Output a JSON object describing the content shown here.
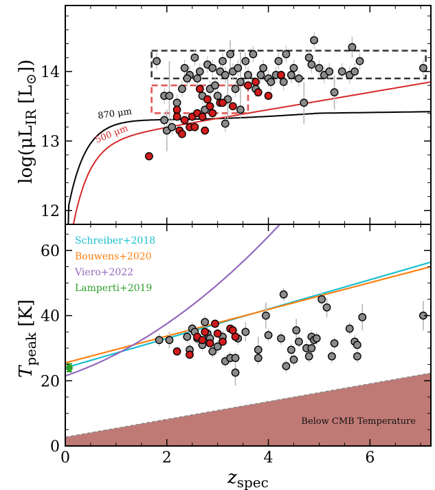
{
  "chart_data": [
    {
      "type": "scatter",
      "panel": "top",
      "xlim": [
        0,
        7.2
      ],
      "ylim": [
        11.8,
        14.95
      ],
      "ylabel": "log(μL",
      "ylabel_sub": "IR",
      "ylabel_unit": " [L",
      "ylabel_unit_sub": "⊙",
      "ylabel_close": "])",
      "y_ticks": [
        "12",
        "13",
        "14"
      ],
      "y_tick_values": [
        12,
        13,
        14
      ],
      "curves": [
        {
          "name": "870 μm",
          "color": "#000000",
          "label_color": "#000000",
          "type": "870"
        },
        {
          "name": "500 μm",
          "color": "#d62728",
          "label_color": "#d62728",
          "type": "500"
        }
      ],
      "boxes": [
        {
          "color": "#333333",
          "x": [
            1.7,
            7.1
          ],
          "y": [
            13.9,
            14.3
          ]
        },
        {
          "color": "#e05555",
          "x": [
            1.7,
            3.6
          ],
          "y": [
            13.4,
            13.8
          ]
        }
      ],
      "gray_points": [
        [
          1.8,
          14.15
        ],
        [
          1.95,
          13.65
        ],
        [
          2.05,
          13.65
        ],
        [
          2.3,
          13.75
        ],
        [
          2.35,
          14.05
        ],
        [
          2.45,
          13.95
        ],
        [
          2.55,
          14.2
        ],
        [
          2.6,
          13.9
        ],
        [
          2.65,
          14.0
        ],
        [
          2.7,
          13.65
        ],
        [
          2.75,
          13.45
        ],
        [
          2.8,
          14.1
        ],
        [
          2.85,
          13.75
        ],
        [
          2.9,
          14.05
        ],
        [
          2.95,
          13.8
        ],
        [
          3.0,
          13.65
        ],
        [
          3.05,
          14.0
        ],
        [
          3.1,
          14.15
        ],
        [
          3.15,
          13.95
        ],
        [
          3.2,
          13.6
        ],
        [
          3.25,
          14.25
        ],
        [
          3.3,
          14.0
        ],
        [
          3.35,
          13.75
        ],
        [
          3.4,
          14.05
        ],
        [
          3.45,
          13.85
        ],
        [
          3.55,
          14.15
        ],
        [
          3.6,
          13.95
        ],
        [
          3.7,
          14.25
        ],
        [
          3.75,
          13.75
        ],
        [
          3.85,
          13.95
        ],
        [
          3.9,
          14.05
        ],
        [
          4.0,
          13.9
        ],
        [
          4.05,
          13.85
        ],
        [
          4.15,
          13.95
        ],
        [
          4.2,
          14.15
        ],
        [
          4.3,
          13.85
        ],
        [
          4.35,
          14.25
        ],
        [
          4.45,
          13.95
        ],
        [
          4.5,
          14.05
        ],
        [
          4.6,
          13.9
        ],
        [
          4.7,
          13.55
        ],
        [
          4.8,
          14.2
        ],
        [
          4.85,
          14.1
        ],
        [
          4.9,
          14.45
        ],
        [
          5.0,
          14.05
        ],
        [
          5.1,
          13.95
        ],
        [
          5.2,
          14.0
        ],
        [
          5.3,
          13.7
        ],
        [
          5.45,
          14.0
        ],
        [
          5.6,
          13.95
        ],
        [
          5.65,
          14.35
        ],
        [
          5.7,
          14.0
        ],
        [
          5.8,
          14.15
        ],
        [
          7.05,
          14.05
        ],
        [
          2.0,
          13.15
        ],
        [
          2.1,
          13.2
        ],
        [
          3.15,
          13.25
        ],
        [
          3.45,
          13.45
        ],
        [
          2.2,
          13.55
        ],
        [
          2.4,
          13.9
        ],
        [
          1.95,
          13.3
        ]
      ],
      "gray_errors": [
        [
          2.05,
          13.65,
          0.5
        ],
        [
          3.2,
          13.6,
          0.3
        ],
        [
          3.45,
          13.85,
          0.45
        ],
        [
          4.7,
          13.55,
          0.3
        ],
        [
          5.3,
          13.7,
          0.25
        ],
        [
          5.65,
          14.35,
          0.15
        ],
        [
          3.25,
          14.25,
          0.2
        ],
        [
          2.0,
          13.15,
          0.3
        ]
      ],
      "red_points": [
        [
          1.65,
          12.78
        ],
        [
          2.2,
          13.45
        ],
        [
          2.25,
          13.15
        ],
        [
          2.3,
          13.1
        ],
        [
          2.35,
          13.3
        ],
        [
          2.45,
          13.2
        ],
        [
          2.5,
          13.35
        ],
        [
          2.55,
          13.2
        ],
        [
          2.6,
          13.4
        ],
        [
          2.65,
          13.75
        ],
        [
          2.7,
          13.35
        ],
        [
          2.75,
          13.15
        ],
        [
          2.8,
          13.6
        ],
        [
          2.85,
          13.5
        ],
        [
          2.9,
          13.4
        ],
        [
          3.05,
          13.55
        ],
        [
          3.1,
          13.55
        ],
        [
          3.3,
          13.5
        ],
        [
          3.75,
          13.85
        ],
        [
          3.8,
          13.7
        ],
        [
          4.0,
          13.65
        ],
        [
          4.25,
          13.95
        ],
        [
          3.6,
          13.8
        ],
        [
          2.2,
          13.35
        ]
      ]
    },
    {
      "type": "scatter",
      "panel": "bottom",
      "xlim": [
        0,
        7.2
      ],
      "ylim": [
        0,
        68
      ],
      "xlabel": "z",
      "xlabel_sub": "spec",
      "ylabel": "T",
      "ylabel_sub": "peak",
      "ylabel_unit": " [K]",
      "x_ticks": [
        "0",
        "2",
        "4",
        "6"
      ],
      "x_tick_values": [
        0,
        2,
        4,
        6
      ],
      "y_ticks": [
        "0",
        "20",
        "40",
        "60"
      ],
      "y_tick_values": [
        0,
        20,
        40,
        60
      ],
      "region_label": "Below CMB Temperature",
      "legend": [
        {
          "label": "Schreiber+2018",
          "color": "#17becf"
        },
        {
          "label": "Bouwens+2020",
          "color": "#ff7f0e"
        },
        {
          "label": "Viero+2022",
          "color": "#9467bd"
        },
        {
          "label": "Lamperti+2019",
          "color": "#2ca02c"
        }
      ],
      "lines": [
        {
          "name": "Schreiber+2018",
          "color": "#17becf",
          "y0": 24.0,
          "slope": 4.5
        },
        {
          "name": "Bouwens+2020",
          "color": "#ff7f0e",
          "y0": 25.5,
          "slope": 4.1
        },
        {
          "name": "Viero+2022",
          "color": "#9467bd",
          "kind": "quad",
          "a": 21.5,
          "b": 5.3,
          "c": 1.35
        }
      ],
      "cmb_region": {
        "color": "#c07a75",
        "y0": 2.7,
        "slope": 2.73
      },
      "lamperti_point": [
        0.08,
        24.0,
        1.2
      ],
      "gray_points": [
        [
          1.85,
          32.5
        ],
        [
          2.05,
          32.5
        ],
        [
          2.4,
          33.5
        ],
        [
          2.45,
          29.5
        ],
        [
          2.5,
          36.0
        ],
        [
          2.55,
          35.0
        ],
        [
          2.6,
          33.0
        ],
        [
          2.7,
          31.0
        ],
        [
          2.75,
          38.0
        ],
        [
          2.8,
          34.5
        ],
        [
          2.85,
          33.0
        ],
        [
          2.9,
          29.0
        ],
        [
          3.0,
          30.5
        ],
        [
          3.1,
          33.5
        ],
        [
          3.15,
          26.0
        ],
        [
          3.25,
          27.0
        ],
        [
          3.35,
          22.5
        ],
        [
          3.35,
          27.0
        ],
        [
          3.4,
          33.0
        ],
        [
          3.55,
          35.0
        ],
        [
          3.8,
          29.5
        ],
        [
          3.8,
          27.0
        ],
        [
          3.95,
          40.0
        ],
        [
          4.0,
          34.0
        ],
        [
          4.25,
          33.0
        ],
        [
          4.3,
          46.5
        ],
        [
          4.35,
          24.5
        ],
        [
          4.45,
          29.5
        ],
        [
          4.5,
          26.5
        ],
        [
          4.55,
          35.5
        ],
        [
          4.6,
          32.0
        ],
        [
          4.75,
          30.0
        ],
        [
          4.8,
          27.5
        ],
        [
          4.85,
          33.5
        ],
        [
          4.9,
          32.5
        ],
        [
          4.95,
          33.0
        ],
        [
          5.05,
          45.0
        ],
        [
          5.15,
          42.5
        ],
        [
          5.25,
          27.5
        ],
        [
          5.3,
          31.5
        ],
        [
          5.6,
          36.0
        ],
        [
          5.7,
          32.0
        ],
        [
          5.75,
          31.0
        ],
        [
          5.75,
          27.5
        ],
        [
          5.85,
          39.5
        ],
        [
          7.05,
          40.0
        ],
        [
          4.85,
          30.0
        ]
      ],
      "gray_errors": [
        [
          3.35,
          22.5,
          4.0
        ],
        [
          4.3,
          46.5,
          2.0
        ],
        [
          5.15,
          42.5,
          3.0
        ],
        [
          7.05,
          40.0,
          4.5
        ],
        [
          5.85,
          39.5,
          4.0
        ],
        [
          3.95,
          40.0,
          4.0
        ],
        [
          3.55,
          35.0,
          3.0
        ],
        [
          4.55,
          35.5,
          3.5
        ],
        [
          3.8,
          29.5,
          4.0
        ],
        [
          2.05,
          32.5,
          2.5
        ]
      ],
      "red_points": [
        [
          2.2,
          29.0
        ],
        [
          2.45,
          28.0
        ],
        [
          2.6,
          33.5
        ],
        [
          2.7,
          32.5
        ],
        [
          2.75,
          35.0
        ],
        [
          2.95,
          37.5
        ],
        [
          3.0,
          34.5
        ],
        [
          3.1,
          32.0
        ],
        [
          3.25,
          36.0
        ],
        [
          3.3,
          35.5
        ],
        [
          3.35,
          33.5
        ],
        [
          2.85,
          31.5
        ]
      ]
    }
  ]
}
